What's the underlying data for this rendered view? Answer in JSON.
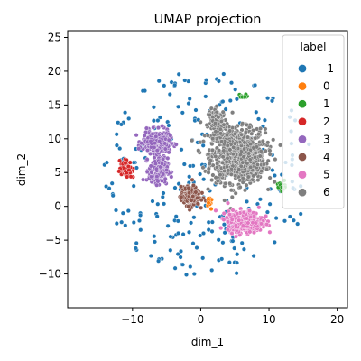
{
  "chart_data": {
    "type": "scatter",
    "title": "UMAP projection",
    "xlabel": "dim_1",
    "ylabel": "dim_2",
    "xlim": [
      -19.5,
      21.5
    ],
    "ylim": [
      -15,
      26
    ],
    "xticks": [
      -10,
      0,
      10,
      20
    ],
    "yticks": [
      -10,
      -5,
      0,
      5,
      10,
      15,
      20,
      25
    ],
    "grid": false,
    "legend": {
      "title": "label",
      "placement": "top-right",
      "entries": [
        "-1",
        "0",
        "1",
        "2",
        "3",
        "4",
        "5",
        "6"
      ]
    },
    "colors": {
      "-1": "#1f77b4",
      "0": "#ff7f0e",
      "1": "#2ca02c",
      "2": "#d62728",
      "3": "#9467bd",
      "4": "#8c564b",
      "5": "#e377c2",
      "6": "#7f7f7f"
    },
    "clusters": [
      {
        "label": "6",
        "center": [
          5.5,
          7.5
        ],
        "spread": [
          2.6,
          2.6
        ],
        "count": 900
      },
      {
        "label": "6",
        "center": [
          2.5,
          12.3
        ],
        "spread": [
          0.9,
          1.4
        ],
        "count": 120
      },
      {
        "label": "3",
        "center": [
          -6.5,
          9.5
        ],
        "spread": [
          1.3,
          1.1
        ],
        "count": 320
      },
      {
        "label": "3",
        "center": [
          -6.2,
          5.3
        ],
        "spread": [
          0.9,
          1.2
        ],
        "count": 200
      },
      {
        "label": "5",
        "center": [
          6.5,
          -2.2
        ],
        "spread": [
          1.7,
          1.0
        ],
        "count": 450
      },
      {
        "label": "4",
        "center": [
          -1.5,
          1.5
        ],
        "spread": [
          0.9,
          0.9
        ],
        "count": 230
      },
      {
        "label": "2",
        "center": [
          -11.0,
          5.5
        ],
        "spread": [
          0.6,
          0.9
        ],
        "count": 60
      },
      {
        "label": "1",
        "center": [
          12.0,
          3.0
        ],
        "spread": [
          0.5,
          0.5
        ],
        "count": 20
      },
      {
        "label": "1",
        "center": [
          6.2,
          16.2
        ],
        "spread": [
          0.5,
          0.3
        ],
        "count": 12
      },
      {
        "label": "0",
        "center": [
          1.5,
          1.0
        ],
        "spread": [
          0.4,
          0.6
        ],
        "count": 10
      }
    ],
    "noise": {
      "label": "-1",
      "center": [
        1.0,
        5.0
      ],
      "radius": [
        15.5,
        15.5
      ],
      "count": 260
    }
  }
}
